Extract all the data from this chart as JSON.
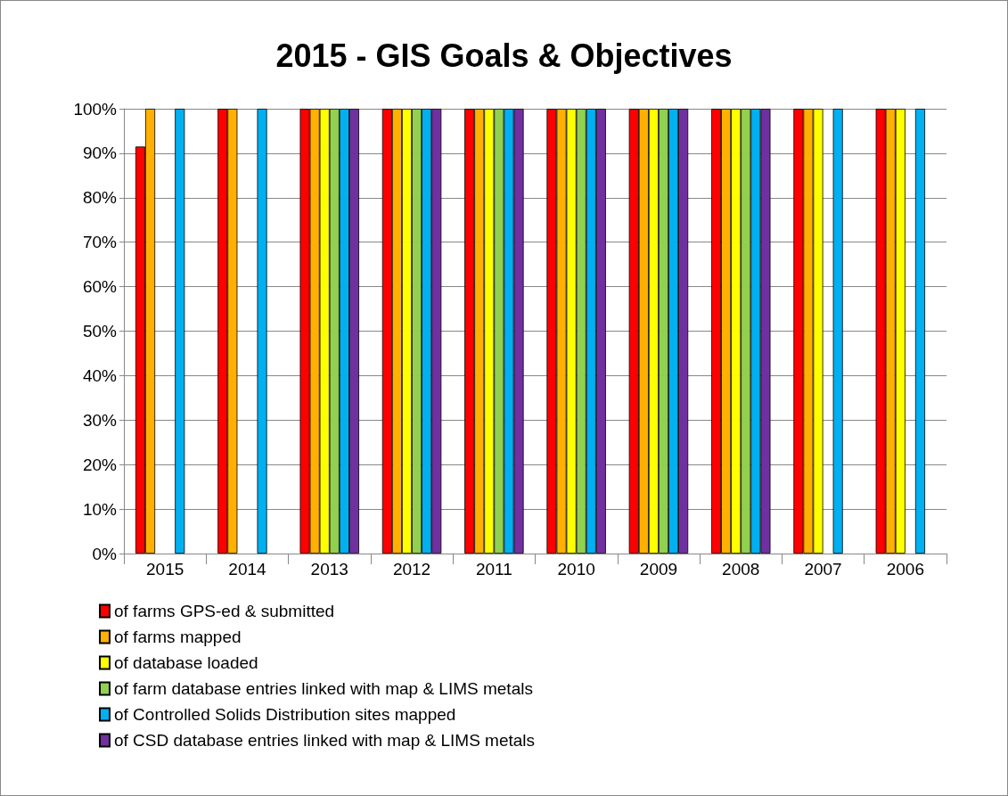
{
  "chart_data": {
    "type": "bar",
    "title": "2015 - GIS Goals & Objectives",
    "categories": [
      "2015",
      "2014",
      "2013",
      "2012",
      "2011",
      "2010",
      "2009",
      "2008",
      "2007",
      "2006"
    ],
    "series": [
      {
        "name": "of farms GPS-ed & submitted",
        "color": "#ff0000",
        "values": [
          91.5,
          100,
          100,
          100,
          100,
          100,
          100,
          100,
          100,
          100
        ]
      },
      {
        "name": "of farms mapped",
        "color": "#ffb000",
        "values": [
          100,
          100,
          100,
          100,
          100,
          100,
          100,
          100,
          100,
          100
        ]
      },
      {
        "name": "of database loaded",
        "color": "#ffff00",
        "values": [
          null,
          null,
          100,
          100,
          100,
          100,
          100,
          100,
          100,
          100
        ]
      },
      {
        "name": "of farm database entries linked with map & LIMS metals",
        "color": "#92d050",
        "values": [
          null,
          null,
          100,
          100,
          100,
          100,
          100,
          100,
          null,
          null
        ]
      },
      {
        "name": "of Controlled Solids Distribution sites mapped",
        "color": "#00b0f0",
        "values": [
          100,
          100,
          100,
          100,
          100,
          100,
          100,
          100,
          100,
          100
        ]
      },
      {
        "name": "of CSD database entries linked with map & LIMS metals",
        "color": "#7030a0",
        "values": [
          null,
          null,
          100,
          100,
          100,
          100,
          100,
          100,
          null,
          null
        ]
      }
    ],
    "ylim": [
      0,
      100
    ],
    "yticks": [
      {
        "value": 0,
        "label": "0%"
      },
      {
        "value": 10,
        "label": "10%"
      },
      {
        "value": 20,
        "label": "20%"
      },
      {
        "value": 30,
        "label": "30%"
      },
      {
        "value": 40,
        "label": "40%"
      },
      {
        "value": 50,
        "label": "50%"
      },
      {
        "value": 60,
        "label": "60%"
      },
      {
        "value": 70,
        "label": "70%"
      },
      {
        "value": 80,
        "label": "80%"
      },
      {
        "value": 90,
        "label": "90%"
      },
      {
        "value": 100,
        "label": "100%"
      }
    ],
    "grid": "y",
    "legend": "bottom"
  }
}
